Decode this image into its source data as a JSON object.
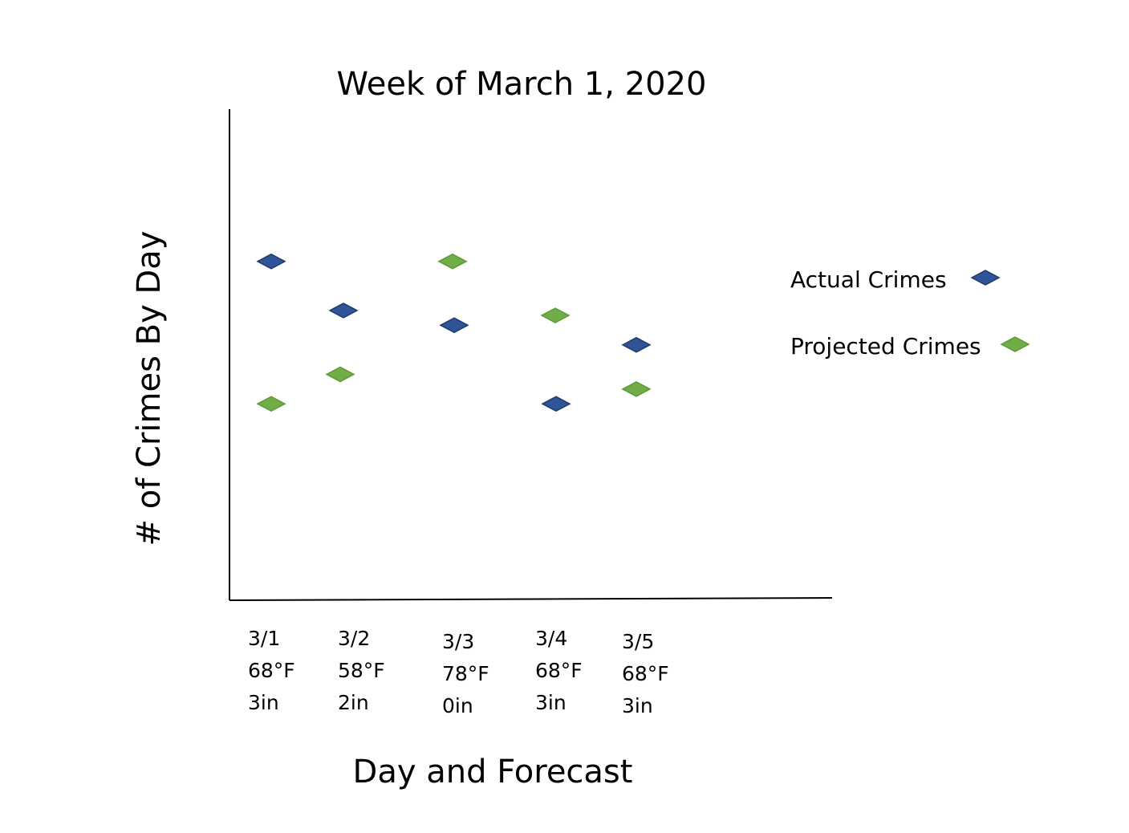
{
  "chart_data": {
    "type": "scatter",
    "title": "Week of March 1, 2020",
    "xlabel": "Day and Forecast",
    "ylabel": "# of Crimes By Day",
    "categories": [
      {
        "day": "3/1",
        "temp": "68°F",
        "precip": "3in"
      },
      {
        "day": "3/2",
        "temp": "58°F",
        "precip": "2in"
      },
      {
        "day": "3/3",
        "temp": "78°F",
        "precip": "0in"
      },
      {
        "day": "3/4",
        "temp": "68°F",
        "precip": "3in"
      },
      {
        "day": "3/5",
        "temp": "68°F",
        "precip": "3in"
      }
    ],
    "ylim": [
      0,
      10
    ],
    "grid": false,
    "legend_position": "right",
    "series": [
      {
        "name": "Actual Crimes",
        "color": "#2f5597",
        "values": [
          6.9,
          5.9,
          5.6,
          4.0,
          5.2
        ]
      },
      {
        "name": "Projected Crimes",
        "color": "#70ad47",
        "values": [
          4.0,
          4.6,
          6.9,
          5.8,
          4.3
        ]
      }
    ]
  }
}
